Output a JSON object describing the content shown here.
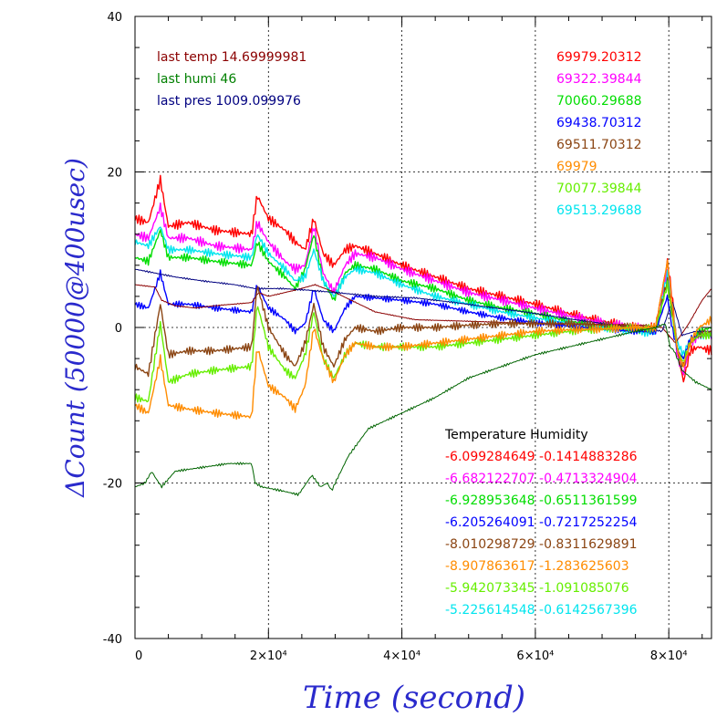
{
  "chart_data": {
    "type": "line",
    "xlabel": "Time (second)",
    "ylabel": "ΔCount (50000@400usec)",
    "xlim": [
      0,
      86400
    ],
    "ylim": [
      -40,
      40
    ],
    "xticks": [
      {
        "value": 0,
        "label": "0"
      },
      {
        "value": 20000,
        "label": "2×10⁴"
      },
      {
        "value": 40000,
        "label": "4×10⁴"
      },
      {
        "value": 60000,
        "label": "6×10⁴"
      },
      {
        "value": 80000,
        "label": "8×10⁴"
      }
    ],
    "yticks": [
      {
        "value": -40,
        "label": "-40"
      },
      {
        "value": -20,
        "label": "-20"
      },
      {
        "value": 0,
        "label": "0"
      },
      {
        "value": 20,
        "label": "20"
      },
      {
        "value": 40,
        "label": "40"
      }
    ],
    "grid": true,
    "env_info": [
      {
        "text": "last temp 14.69999981",
        "color": "#8b0000"
      },
      {
        "text": "last humi 46",
        "color": "#008000"
      },
      {
        "text": "last pres 1009.099976",
        "color": "#000080"
      }
    ],
    "series_labels": [
      {
        "text": "69979.20312",
        "color": "#ff0000"
      },
      {
        "text": "69322.39844",
        "color": "#ff00ff"
      },
      {
        "text": "70060.29688",
        "color": "#00dd00"
      },
      {
        "text": "69438.70312",
        "color": "#0000ff"
      },
      {
        "text": "69511.70312",
        "color": "#8b4513"
      },
      {
        "text": "69979",
        "color": "#ff8c00"
      },
      {
        "text": "70077.39844",
        "color": "#66ee00"
      },
      {
        "text": "69513.29688",
        "color": "#00e5ee"
      }
    ],
    "coeff_header": "Temperature   Humidity",
    "coefficients": [
      {
        "text": "-6.099284649 -0.1414883286",
        "color": "#ff0000"
      },
      {
        "text": "-6.682122707 -0.4713324904",
        "color": "#ff00ff"
      },
      {
        "text": "-6.928953648 -0.6511361599",
        "color": "#00dd00"
      },
      {
        "text": "-6.205264091 -0.7217252254",
        "color": "#0000ff"
      },
      {
        "text": "-8.010298729 -0.8311629891",
        "color": "#8b4513"
      },
      {
        "text": "-8.907863617 -1.283625603",
        "color": "#ff8c00"
      },
      {
        "text": "-5.942073345 -1.091085076",
        "color": "#66ee00"
      },
      {
        "text": "-5.225614548 -0.6142567396",
        "color": "#00e5ee"
      }
    ],
    "series": [
      {
        "color": "#ff0000",
        "width": 1.4,
        "noise": 0.6,
        "x": [
          0,
          2000,
          3800,
          5000,
          8000,
          12000,
          17500,
          18300,
          20000,
          22500,
          24000,
          25500,
          26800,
          28200,
          29800,
          31500,
          33000,
          36000,
          40000,
          45000,
          50000,
          55000,
          60000,
          65000,
          70000,
          75000,
          78000,
          79800,
          80500,
          81300,
          82200,
          83200,
          84500,
          86400
        ],
        "values": [
          14,
          13.5,
          19,
          13,
          13.5,
          12.5,
          12,
          17,
          14,
          12.5,
          11,
          10,
          14,
          9.5,
          8,
          10,
          10.5,
          9.5,
          8,
          6.5,
          5,
          4,
          3,
          1.8,
          0.8,
          0,
          0,
          8.5,
          4,
          -3,
          -7,
          -3,
          -2.5,
          -3
        ]
      },
      {
        "color": "#ff00ff",
        "width": 1.4,
        "noise": 0.6,
        "x": [
          0,
          2000,
          3800,
          5000,
          8000,
          12000,
          17500,
          18300,
          20000,
          22500,
          24000,
          25500,
          26800,
          28200,
          29800,
          31500,
          33000,
          36000,
          40000,
          45000,
          50000,
          55000,
          60000,
          65000,
          70000,
          75000,
          78000,
          79800,
          80500,
          81300,
          82200,
          83200,
          84500,
          86400
        ],
        "values": [
          12,
          11.5,
          15.5,
          11.5,
          11.5,
          10.5,
          10,
          13.5,
          11,
          8.5,
          7.5,
          8,
          13,
          7,
          4.5,
          8,
          9.5,
          9,
          7.5,
          6,
          4.5,
          3.5,
          2.5,
          1.5,
          0.6,
          0,
          -0.2,
          7.5,
          3,
          -4,
          -6,
          -2,
          -1,
          -1
        ]
      },
      {
        "color": "#00dd00",
        "width": 1.4,
        "noise": 0.5,
        "x": [
          0,
          2000,
          3800,
          5000,
          8000,
          12000,
          17500,
          18300,
          20000,
          22500,
          24000,
          25500,
          26800,
          28200,
          29800,
          31500,
          33000,
          36000,
          40000,
          45000,
          50000,
          55000,
          60000,
          65000,
          70000,
          75000,
          78000,
          79800,
          80500,
          81300,
          82200,
          83200,
          84500,
          86400
        ],
        "values": [
          9,
          8.5,
          12.5,
          9,
          9,
          8.5,
          8,
          11,
          8.5,
          6.5,
          5,
          7.5,
          12,
          6,
          3.5,
          7,
          8,
          7.5,
          6,
          5,
          3.5,
          2.5,
          1.8,
          0.8,
          0.2,
          -0.3,
          -0.5,
          6,
          2,
          -3,
          -5,
          -2,
          -0.5,
          0
        ]
      },
      {
        "color": "#00e5ee",
        "width": 1.4,
        "noise": 0.5,
        "x": [
          0,
          2000,
          3800,
          5000,
          8000,
          12000,
          17500,
          18300,
          20000,
          22500,
          24000,
          25500,
          26800,
          28200,
          29800,
          31500,
          33000,
          36000,
          40000,
          45000,
          50000,
          55000,
          60000,
          65000,
          70000,
          75000,
          78000,
          79800,
          80500,
          81300,
          82200,
          83200,
          84500,
          86400
        ],
        "values": [
          11,
          10.5,
          13,
          10,
          10,
          9.5,
          9,
          12,
          9.5,
          7.5,
          6,
          6.5,
          10,
          6,
          4,
          6.5,
          7.5,
          7,
          5.5,
          4,
          3,
          2,
          1.2,
          0.6,
          0,
          -0.5,
          -0.8,
          7,
          2.5,
          -2,
          -3.5,
          -1.5,
          -1,
          -1
        ]
      },
      {
        "color": "#ff0000",
        "width": 1.4,
        "noise": 0.6,
        "x": [],
        "values": []
      },
      {
        "color": "#0000ff",
        "width": 1.4,
        "noise": 0.4,
        "x": [
          0,
          2000,
          3800,
          5000,
          8000,
          12000,
          17500,
          18300,
          20000,
          22500,
          24000,
          25500,
          26800,
          28200,
          29800,
          31500,
          33000,
          36000,
          40000,
          45000,
          50000,
          55000,
          60000,
          65000,
          70000,
          75000,
          78000,
          79800,
          80500,
          81300,
          82200,
          83200,
          84500,
          86400
        ],
        "values": [
          3,
          2.5,
          7,
          3,
          3,
          2.5,
          2,
          5.5,
          2.5,
          1,
          -0.5,
          0.5,
          5,
          1,
          -0.5,
          2.5,
          4,
          3.8,
          3.5,
          3,
          2,
          1.2,
          0.6,
          0.2,
          -0.2,
          -0.5,
          -0.5,
          4,
          0,
          -3,
          -4,
          -1.5,
          -1,
          -1
        ]
      },
      {
        "color": "#8b0000",
        "width": 1.0,
        "noise": 0.05,
        "x": [
          0,
          3000,
          4000,
          6000,
          9000,
          12000,
          17500,
          18500,
          20000,
          24000,
          27000,
          30000,
          36000,
          42000,
          50000,
          60000,
          70000,
          76000,
          79000,
          80000,
          81000,
          83000,
          85000,
          86400
        ],
        "values": [
          5.5,
          5.2,
          3.5,
          2.8,
          2.5,
          2.8,
          3.2,
          4.5,
          4,
          4.8,
          5.5,
          4.5,
          2,
          1,
          0.8,
          0.5,
          0.4,
          0.3,
          0,
          -1,
          -2,
          0.5,
          3.5,
          5
        ]
      },
      {
        "color": "#000080",
        "width": 1.0,
        "noise": 0.1,
        "x": [
          0,
          3000,
          6000,
          10000,
          15000,
          18000,
          22000,
          26000,
          30000,
          36000,
          42000,
          48000,
          54000,
          60000,
          66000,
          72000,
          76000,
          79000,
          80500,
          82000,
          84000,
          86400
        ],
        "values": [
          7.5,
          7,
          6.5,
          6,
          5.5,
          5,
          5,
          4.8,
          4.5,
          4,
          3.8,
          3.2,
          2.5,
          1.8,
          1,
          0.3,
          0,
          -0.5,
          3.5,
          -1,
          -0.5,
          -0.5
        ]
      },
      {
        "color": "#8b4513",
        "width": 1.4,
        "noise": 0.5,
        "x": [
          0,
          2000,
          3800,
          5000,
          8000,
          12000,
          17500,
          18300,
          20000,
          22500,
          24000,
          25500,
          26800,
          28200,
          29800,
          31500,
          33000,
          36000,
          40000,
          45000,
          50000,
          55000,
          60000,
          65000,
          70000,
          75000,
          78000,
          79800,
          80500,
          81300,
          82200,
          83200,
          84500,
          86400
        ],
        "values": [
          -5,
          -6,
          3,
          -3.5,
          -3,
          -3,
          -2.5,
          5.5,
          0,
          -3.5,
          -5,
          -2,
          3,
          -2.5,
          -5,
          -1.5,
          0,
          -0.5,
          0,
          0,
          0.3,
          0.5,
          0.5,
          0.5,
          0.3,
          0,
          -0.2,
          6,
          2,
          -3,
          -5,
          -2,
          -1,
          -0.5
        ]
      },
      {
        "color": "#66ee00",
        "width": 1.4,
        "noise": 0.5,
        "x": [
          0,
          2000,
          3800,
          5000,
          8000,
          12000,
          17500,
          18300,
          20000,
          22500,
          24000,
          25500,
          26800,
          28200,
          29800,
          31500,
          33000,
          36000,
          40000,
          45000,
          50000,
          55000,
          60000,
          65000,
          70000,
          75000,
          78000,
          79800,
          80500,
          81300,
          82200,
          83200,
          84500,
          86400
        ],
        "values": [
          -9,
          -9.5,
          0.5,
          -7,
          -6,
          -5.5,
          -5,
          3,
          -2.5,
          -5.5,
          -6.5,
          -3.5,
          2,
          -4,
          -6.5,
          -3.5,
          -2,
          -2.5,
          -2.5,
          -2.5,
          -2,
          -1.5,
          -1,
          -0.5,
          -0.2,
          0,
          -0.2,
          5.5,
          1.5,
          -3,
          -4.5,
          -2,
          -1,
          -1
        ]
      },
      {
        "color": "#ff8c00",
        "width": 1.4,
        "noise": 0.5,
        "x": [
          0,
          2000,
          3800,
          5000,
          8000,
          12000,
          17500,
          18300,
          20000,
          22500,
          24000,
          25500,
          26800,
          28200,
          29800,
          31500,
          33000,
          36000,
          40000,
          45000,
          50000,
          55000,
          60000,
          65000,
          70000,
          75000,
          78000,
          79800,
          80500,
          81300,
          82200,
          83200,
          84500,
          86400
        ],
        "values": [
          -10,
          -11,
          -4,
          -10,
          -10.5,
          -11,
          -11.5,
          -2.5,
          -7.5,
          -9,
          -10.5,
          -7.5,
          0,
          -4,
          -7,
          -3.5,
          -2,
          -2.5,
          -2.5,
          -2,
          -1.5,
          -1,
          -0.5,
          -0.3,
          -0.2,
          0,
          0,
          8.5,
          3,
          -3,
          -5,
          -2,
          0,
          1
        ]
      },
      {
        "color": "#006400",
        "width": 1.0,
        "noise": 0.15,
        "x": [
          0,
          1500,
          2500,
          3200,
          4000,
          6000,
          10000,
          14000,
          17500,
          18000,
          19000,
          22000,
          24500,
          26500,
          27800,
          28800,
          29500,
          30000,
          32000,
          35000,
          40000,
          45000,
          50000,
          55000,
          60000,
          65000,
          70000,
          75000,
          78000,
          79500,
          80200,
          80800,
          82000,
          84000,
          86400
        ],
        "values": [
          -20.5,
          -20,
          -18.5,
          -19.5,
          -20.5,
          -18.5,
          -18,
          -17.5,
          -17.5,
          -20,
          -20.5,
          -21,
          -21.5,
          -19,
          -20.5,
          -20,
          -21,
          -20,
          -16.5,
          -13,
          -11,
          -9,
          -6.5,
          -5,
          -3.5,
          -2.5,
          -1.5,
          -0.5,
          0,
          0.5,
          -2.5,
          -3,
          -5.5,
          -7,
          -8
        ]
      }
    ]
  }
}
